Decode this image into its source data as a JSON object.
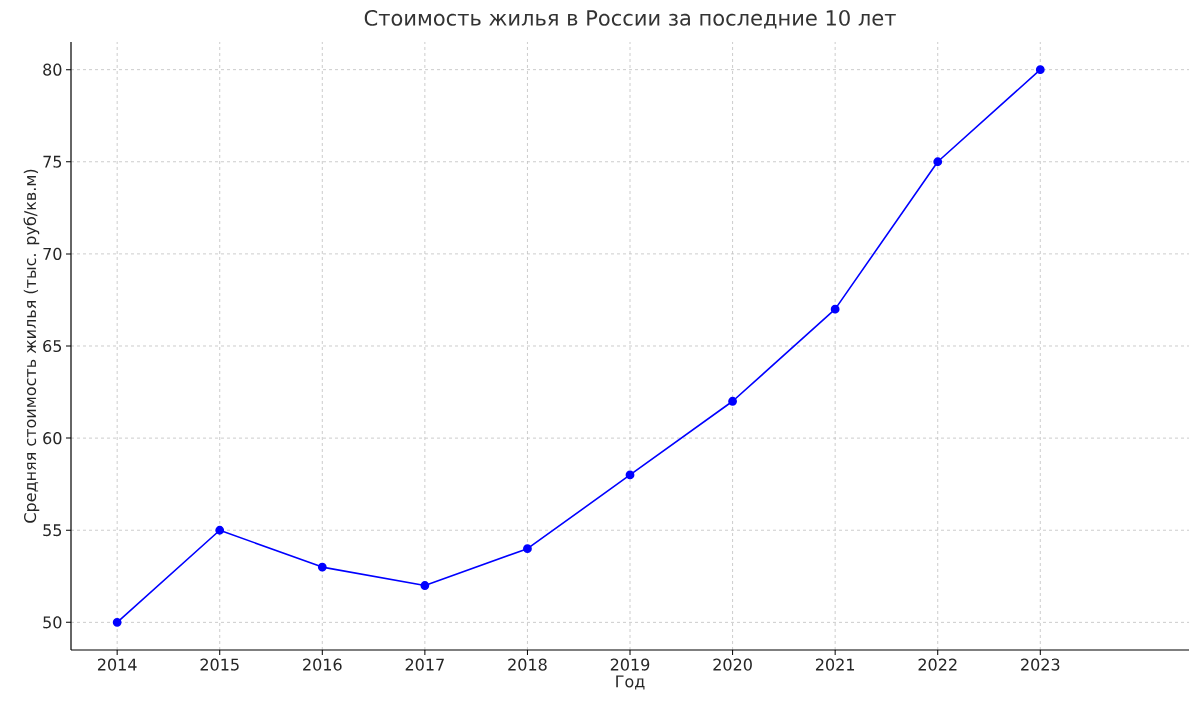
{
  "chart_data": {
    "type": "line",
    "title": "Стоимость жилья в России за последние 10 лет",
    "xlabel": "Год",
    "ylabel": "Средняя стоимость жилья (тыс. руб/кв.м)",
    "x": [
      2014,
      2015,
      2016,
      2017,
      2018,
      2019,
      2020,
      2021,
      2022,
      2023
    ],
    "series": [
      {
        "color": "#0000ff",
        "values": [
          50,
          55,
          53,
          52,
          54,
          58,
          62,
          67,
          75,
          80
        ]
      }
    ],
    "xlim": [
      2013.55,
      2024.45
    ],
    "ylim": [
      48.5,
      81.5
    ],
    "xticks": [
      2014,
      2015,
      2016,
      2017,
      2018,
      2019,
      2020,
      2021,
      2022,
      2023
    ],
    "yticks": [
      50,
      55,
      60,
      65,
      70,
      75,
      80
    ],
    "grid": true,
    "marker": "circle",
    "line_style": "solid"
  }
}
